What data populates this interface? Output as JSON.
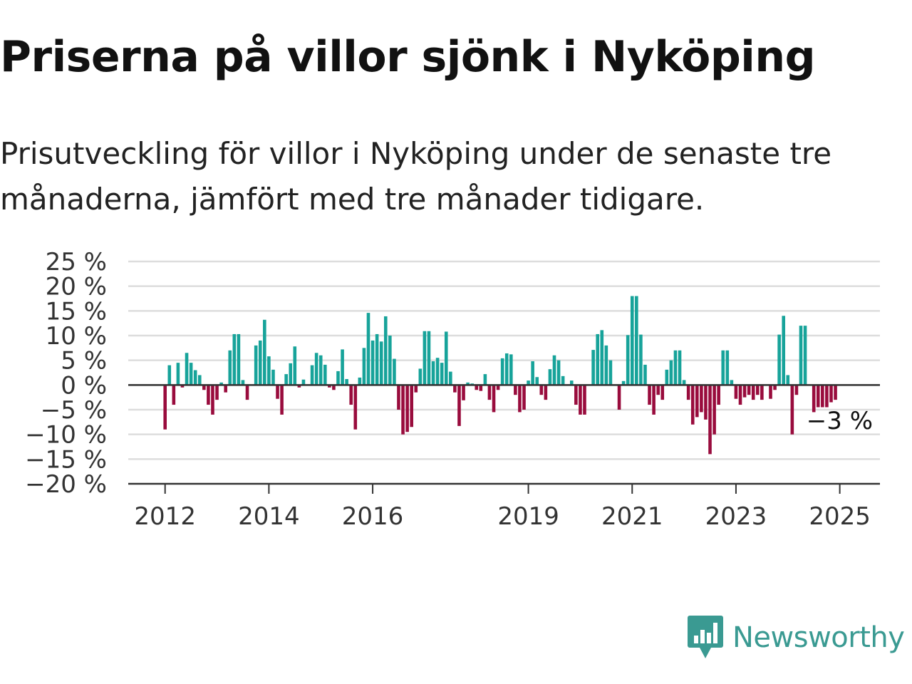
{
  "title": "Priserna på villor sjönk i Nyköping",
  "subtitle": "Prisutveckling för villor i Nyköping under de senaste tre månaderna, jämfört med tre månader tidigare.",
  "logo": {
    "text": "Newsworthy",
    "icon": "newsworthy-chart-icon",
    "color": "#3a9a92"
  },
  "colors": {
    "positive": "#17a39a",
    "negative": "#990c3d",
    "grid": "#dddddd",
    "axis": "#333333"
  },
  "chart_data": {
    "type": "bar",
    "title": "",
    "xlabel": "",
    "ylabel": "",
    "unit": "%",
    "ylim": [
      -20,
      25
    ],
    "yticks": [
      "25 %",
      "20 %",
      "15 %",
      "10 %",
      "5 %",
      "0 %",
      "−5 %",
      "−10 %",
      "−15 %",
      "−20 %"
    ],
    "xticks": [
      "2012",
      "2014",
      "2016",
      "2019",
      "2021",
      "2023",
      "2025"
    ],
    "grid": true,
    "legend": "none",
    "x_start": "2012-01",
    "x_end": "2025-01",
    "frequency": "monthly",
    "end_label": "−3 %",
    "series": [
      {
        "values": [
          -9,
          4,
          -4,
          4.5,
          -0.5,
          6.5,
          4.5,
          3,
          2,
          -1,
          -4,
          -6,
          -3,
          0.5,
          -1.5,
          7,
          10.3,
          10.3,
          1,
          -3,
          0,
          8,
          9,
          13.2,
          5.8,
          3.1,
          -2.8,
          -6,
          2.2,
          4.4,
          7.8,
          -0.5,
          1.1,
          0,
          4,
          6.5,
          6,
          4.1,
          -0.5,
          -1,
          2.8,
          7.2,
          1.2,
          -4,
          -9,
          1.5,
          7.5,
          14.6,
          9,
          10.3,
          8.8,
          13.9,
          10,
          5.3,
          -5,
          -10,
          -9.5,
          -8.5,
          -1.5,
          3.3,
          10.9,
          10.9,
          4.8,
          5.5,
          4.5,
          10.8,
          2.7,
          -1.5,
          -8.3,
          -3.1,
          0.5,
          0.3,
          -1,
          -1.2,
          2.2,
          -3,
          -5.5,
          -1,
          5.4,
          6.4,
          6.2,
          -2,
          -5.5,
          -5,
          0.9,
          4.8,
          1.6,
          -2,
          -3,
          3.2,
          6,
          5,
          1.8,
          0,
          0.9,
          -4,
          -6,
          -6,
          0,
          7.1,
          10.3,
          11.1,
          8,
          5,
          0,
          -5,
          0.8,
          10.1,
          18,
          18,
          10.2,
          4.1,
          -4,
          -6,
          -2,
          -3,
          3.1,
          5,
          7,
          7,
          1,
          -3,
          -8,
          -6.5,
          -5.5,
          -7,
          -14,
          -10,
          -4,
          7,
          7,
          1,
          -2.8,
          -4,
          -2.5,
          -2,
          -3,
          -2,
          -3,
          0,
          -2.8,
          -1,
          10.2,
          14,
          2,
          -10,
          -2,
          12,
          12,
          0,
          -5.5,
          -4.5,
          -4.5,
          -4.5,
          -3.5,
          -3
        ]
      }
    ]
  }
}
